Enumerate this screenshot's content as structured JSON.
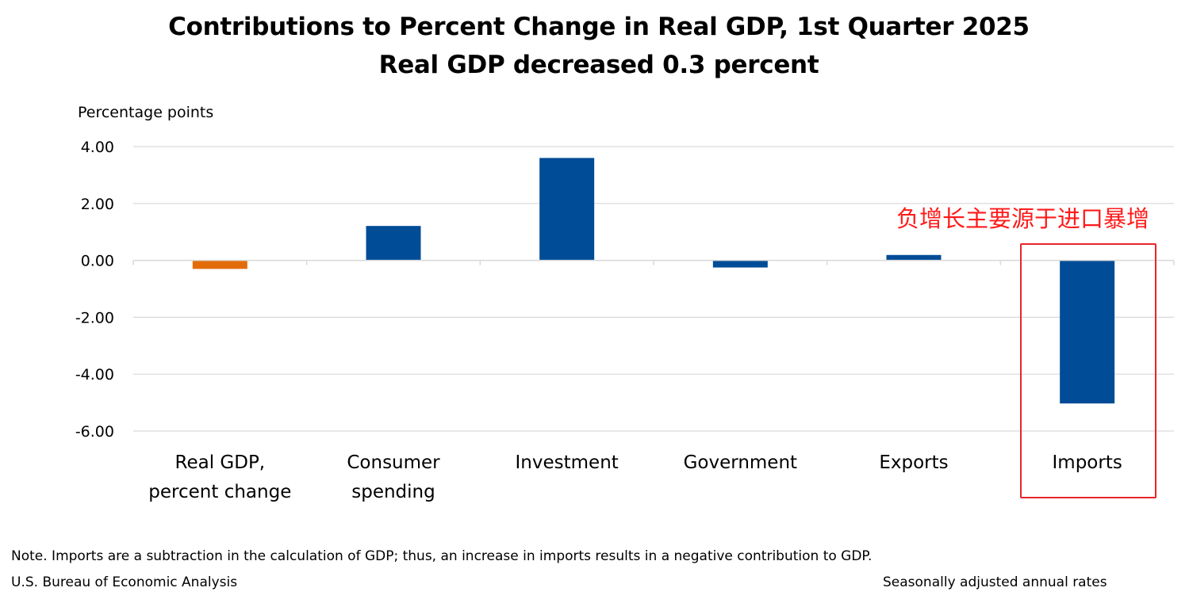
{
  "chart_data": {
    "type": "bar",
    "title": "Contributions to Percent Change in Real GDP, 1st Quarter 2025",
    "subtitle": "Real GDP decreased 0.3 percent",
    "ylabel": "Percentage points",
    "ylim": [
      -6,
      4
    ],
    "yticks": [
      4,
      2,
      0,
      -2,
      -4,
      -6
    ],
    "ytick_labels": [
      "4.00",
      "2.00",
      "0.00",
      "-2.00",
      "-4.00",
      "-6.00"
    ],
    "grid": true,
    "categories": [
      [
        "Real GDP,",
        "percent change"
      ],
      [
        "Consumer",
        "spending"
      ],
      [
        "Investment"
      ],
      [
        "Government"
      ],
      [
        "Exports"
      ],
      [
        "Imports"
      ]
    ],
    "values": [
      -0.3,
      1.21,
      3.6,
      -0.25,
      0.19,
      -5.03
    ],
    "colors": [
      "#E36C0A",
      "#004C97",
      "#004C97",
      "#004C97",
      "#004C97",
      "#004C97"
    ]
  },
  "note": "Note. Imports are a subtraction in the calculation of GDP; thus, an increase in imports results in a negative contribution to GDP.",
  "source": "U.S. Bureau of Economic Analysis",
  "rates": "Seasonally adjusted annual rates",
  "annotation": {
    "text": "负增长主要源于进口暴增",
    "target_category": "Imports",
    "color": "#E8242B"
  }
}
